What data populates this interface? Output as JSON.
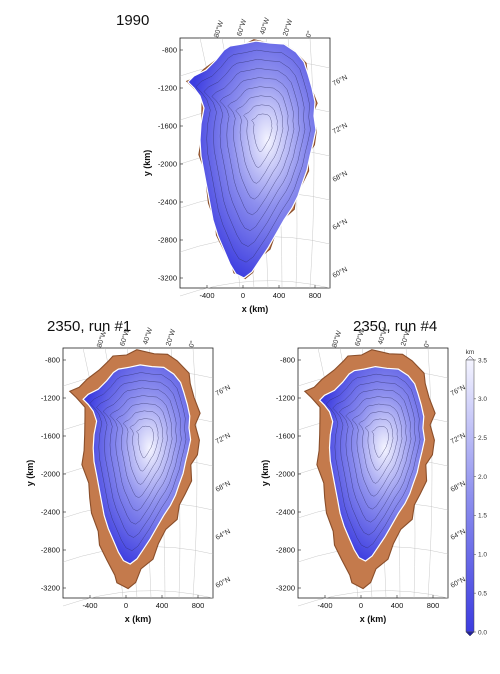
{
  "panels": [
    {
      "title": "1990",
      "x_label": "x (km)",
      "y_label": "y (km)",
      "x_ticks": [
        "-400",
        "0",
        "400",
        "800"
      ],
      "y_ticks": [
        "-800",
        "-1200",
        "-1600",
        "-2000",
        "-2400",
        "-2800",
        "-3200"
      ],
      "lon_labels": [
        "80°W",
        "60°W",
        "40°W",
        "20°W",
        "0°"
      ],
      "lat_labels": [
        "76°N",
        "72°N",
        "68°N",
        "64°N",
        "60°N"
      ],
      "ice_extent": 1.0
    },
    {
      "title": "2350, run #1",
      "x_label": "x (km)",
      "y_label": "y (km)",
      "x_ticks": [
        "-400",
        "0",
        "400",
        "800"
      ],
      "y_ticks": [
        "-800",
        "-1200",
        "-1600",
        "-2000",
        "-2400",
        "-2800",
        "-3200"
      ],
      "lon_labels": [
        "80°W",
        "60°W",
        "40°W",
        "20°W",
        "0°"
      ],
      "lat_labels": [
        "76°N",
        "72°N",
        "68°N",
        "64°N",
        "60°N"
      ],
      "ice_extent": 0.84
    },
    {
      "title": "2350, run #4",
      "x_label": "x (km)",
      "y_label": "y (km)",
      "x_ticks": [
        "-400",
        "0",
        "400",
        "800"
      ],
      "y_ticks": [
        "-800",
        "-1200",
        "-1600",
        "-2000",
        "-2400",
        "-2800",
        "-3200"
      ],
      "lon_labels": [
        "80°W",
        "60°W",
        "40°W",
        "20°W",
        "0°"
      ],
      "lat_labels": [
        "76°N",
        "72°N",
        "68°N",
        "64°N",
        "60°N"
      ],
      "ice_extent": 0.82
    }
  ],
  "colorbar": {
    "unit": "km",
    "ticks": [
      "3.5",
      "3.0",
      "2.5",
      "2.0",
      "1.5",
      "1.0",
      "0.5",
      "0.0"
    ],
    "min": 0.0,
    "max": 3.5
  },
  "colors": {
    "ice_low": "#3c3ce0",
    "ice_mid": "#8e90ee",
    "ice_high": "#f4f4ff",
    "bedrock": "#c47a4c",
    "bedrock_dark": "#8a4e2a"
  }
}
